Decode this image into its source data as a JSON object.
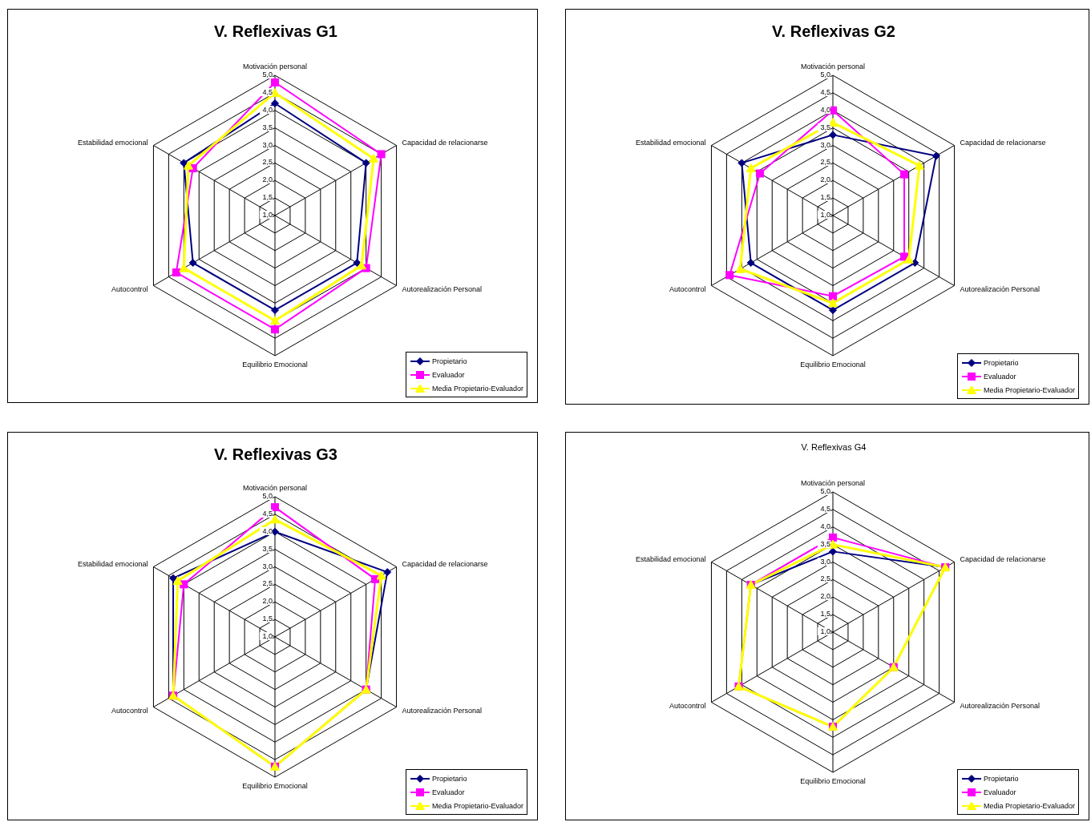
{
  "chart_data": [
    {
      "type": "radar",
      "title": "V. Reflexivas G1",
      "categories": [
        "Motivación personal",
        "Capacidad de relacionarse",
        "Autorealización Personal",
        "Equilibrio Emocional",
        "Autocontrol",
        "Estabilidad emocional"
      ],
      "ylim": [
        1,
        5
      ],
      "yticks": [
        {
          "value": 1,
          "label": "1,0"
        },
        {
          "value": 1.5,
          "label": "1,5"
        },
        {
          "value": 2,
          "label": "2,0"
        },
        {
          "value": 2.5,
          "label": "2,5"
        },
        {
          "value": 3,
          "label": "3,0"
        },
        {
          "value": 3.5,
          "label": "3,5"
        },
        {
          "value": 4,
          "label": "4,0"
        },
        {
          "value": 4.5,
          "label": "4,5"
        },
        {
          "value": 5,
          "label": "5,0"
        }
      ],
      "grid": true,
      "legend": "bottom right",
      "series": [
        {
          "name": "Propietario",
          "color": "#000080",
          "marker": "diamond",
          "values": [
            4.2,
            4.0,
            3.7,
            3.7,
            3.7,
            4.0
          ]
        },
        {
          "name": "Evaluador",
          "color": "#ff00ff",
          "marker": "square",
          "values": [
            4.8,
            4.5,
            4.0,
            4.25,
            4.25,
            3.7
          ]
        },
        {
          "name": "Media Propietario-Evaluador",
          "color": "#ffff00",
          "marker": "triangle",
          "values": [
            4.5,
            4.25,
            3.85,
            4.0,
            4.0,
            3.85
          ]
        }
      ]
    },
    {
      "type": "radar",
      "title": "V. Reflexivas G2",
      "categories": [
        "Motivación personal",
        "Capacidad de relacionarse",
        "Autorealización Personal",
        "Equilibrio Emocional",
        "Autocontrol",
        "Estabilidad emocional"
      ],
      "ylim": [
        1,
        5
      ],
      "yticks": [
        {
          "value": 1,
          "label": "1,0"
        },
        {
          "value": 1.5,
          "label": "1,5"
        },
        {
          "value": 2,
          "label": "2,0"
        },
        {
          "value": 2.5,
          "label": "2,5"
        },
        {
          "value": 3,
          "label": "3,0"
        },
        {
          "value": 3.5,
          "label": "3,5"
        },
        {
          "value": 4,
          "label": "4,0"
        },
        {
          "value": 4.5,
          "label": "4,5"
        },
        {
          "value": 5,
          "label": "5,0"
        }
      ],
      "grid": true,
      "legend": "bottom right",
      "series": [
        {
          "name": "Propietario",
          "color": "#000080",
          "marker": "diamond",
          "values": [
            3.3,
            4.4,
            3.7,
            3.7,
            3.7,
            4.0
          ]
        },
        {
          "name": "Evaluador",
          "color": "#ff00ff",
          "marker": "square",
          "values": [
            4.0,
            3.35,
            3.35,
            3.3,
            4.4,
            3.4
          ]
        },
        {
          "name": "Media Propietario-Evaluador",
          "color": "#ffff00",
          "marker": "triangle",
          "values": [
            3.65,
            3.85,
            3.5,
            3.5,
            4.05,
            3.7
          ]
        }
      ]
    },
    {
      "type": "radar",
      "title": "V. Reflexivas G3",
      "categories": [
        "Motivación personal",
        "Capacidad de relacionarse",
        "Autorealización Personal",
        "Equilibrio Emocional",
        "Autocontrol",
        "Estabilidad emocional"
      ],
      "ylim": [
        1,
        5
      ],
      "yticks": [
        {
          "value": 1,
          "label": "1,0"
        },
        {
          "value": 1.5,
          "label": "1,5"
        },
        {
          "value": 2,
          "label": "2,0"
        },
        {
          "value": 2.5,
          "label": "2,5"
        },
        {
          "value": 3,
          "label": "3,0"
        },
        {
          "value": 3.5,
          "label": "3,5"
        },
        {
          "value": 4,
          "label": "4,0"
        },
        {
          "value": 4.5,
          "label": "4,5"
        },
        {
          "value": 5,
          "label": "5,0"
        }
      ],
      "grid": true,
      "legend": "bottom right",
      "series": [
        {
          "name": "Propietario",
          "color": "#000080",
          "marker": "diamond",
          "values": [
            4.0,
            4.7,
            4.0,
            4.7,
            4.35,
            4.35
          ]
        },
        {
          "name": "Evaluador",
          "color": "#ff00ff",
          "marker": "square",
          "values": [
            4.7,
            4.3,
            4.0,
            4.7,
            4.35,
            4.0
          ]
        },
        {
          "name": "Media Propietario-Evaluador",
          "color": "#ffff00",
          "marker": "triangle",
          "values": [
            4.35,
            4.5,
            4.0,
            4.7,
            4.35,
            4.2
          ]
        }
      ]
    },
    {
      "type": "radar",
      "title": "V. Reflexivas G4",
      "categories": [
        "Motivación personal",
        "Capacidad de relacionarse",
        "Autorealización Personal",
        "Equilibrio Emocional",
        "Autocontrol",
        "Estabilidad emocional"
      ],
      "ylim": [
        1,
        5
      ],
      "yticks": [
        {
          "value": 1,
          "label": "1,0"
        },
        {
          "value": 1.5,
          "label": "1,5"
        },
        {
          "value": 2,
          "label": "2,0"
        },
        {
          "value": 2.5,
          "label": "2,5"
        },
        {
          "value": 3,
          "label": "3,0"
        },
        {
          "value": 3.5,
          "label": "3,5"
        },
        {
          "value": 4,
          "label": "4,0"
        },
        {
          "value": 4.5,
          "label": "4,5"
        },
        {
          "value": 5,
          "label": "5,0"
        }
      ],
      "grid": true,
      "legend": "bottom right",
      "series": [
        {
          "name": "Propietario",
          "color": "#000080",
          "marker": "diamond",
          "values": [
            3.3,
            4.7,
            3.0,
            3.7,
            4.1,
            3.7
          ]
        },
        {
          "name": "Evaluador",
          "color": "#ff00ff",
          "marker": "square",
          "values": [
            3.7,
            4.7,
            3.0,
            3.7,
            4.1,
            3.7
          ]
        },
        {
          "name": "Media Propietario-Evaluador",
          "color": "#ffff00",
          "marker": "triangle",
          "values": [
            3.5,
            4.7,
            3.0,
            3.7,
            4.1,
            3.7
          ]
        }
      ]
    }
  ]
}
